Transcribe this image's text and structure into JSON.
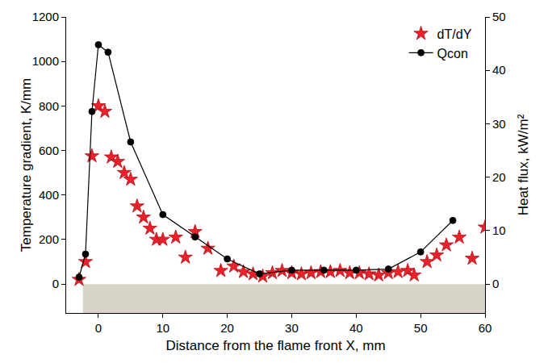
{
  "chart_data": {
    "type": "scatter",
    "x_label": "Distance from the flame front X, mm",
    "y_label": "Temperature gradient, K/mm",
    "y2_label": "Heat flux, kW/m²",
    "xlim": [
      -5,
      60
    ],
    "xticks": [
      0,
      10,
      20,
      30,
      40,
      50,
      60
    ],
    "ylim": [
      -130,
      1200
    ],
    "yticks": [
      0,
      200,
      400,
      600,
      800,
      1000,
      1200
    ],
    "y2lim": [
      -5.42,
      50
    ],
    "y2ticks": [
      0,
      10,
      20,
      30,
      40,
      50
    ],
    "grid": false,
    "legend": "top right",
    "series": [
      {
        "name": "dT/dY",
        "type": "scatter",
        "color": "#e8212a",
        "marker": "star",
        "axis": "y",
        "x": [
          -3,
          -2,
          -1,
          0,
          1,
          2,
          3,
          4,
          5,
          6,
          7,
          8,
          9,
          10,
          12,
          13.5,
          15,
          17,
          19,
          21,
          22.5,
          24,
          25.5,
          27,
          28.5,
          30,
          31.5,
          33,
          34.5,
          36,
          37.5,
          39,
          40.5,
          42,
          43.5,
          45,
          46.5,
          48,
          49,
          51,
          52.5,
          54,
          56,
          58,
          60
        ],
        "values": [
          20,
          100,
          575,
          800,
          775,
          570,
          550,
          500,
          470,
          350,
          300,
          250,
          200,
          200,
          210,
          120,
          235,
          160,
          60,
          80,
          55,
          45,
          35,
          50,
          60,
          50,
          45,
          50,
          55,
          55,
          60,
          50,
          50,
          45,
          40,
          50,
          55,
          60,
          40,
          100,
          130,
          175,
          210,
          115,
          255
        ]
      },
      {
        "name": "Qcon",
        "type": "line",
        "color": "#000000",
        "marker": "circle",
        "line_style": "solid",
        "axis": "y2",
        "x": [
          -3,
          -2,
          -1,
          0,
          1.5,
          5,
          10,
          15,
          20,
          25,
          30,
          35,
          40,
          45,
          50,
          55
        ],
        "values": [
          1.3,
          5.6,
          32.3,
          44.8,
          43.4,
          26.6,
          13,
          8.8,
          4.7,
          1.9,
          2.6,
          2.6,
          2.6,
          2.8,
          6,
          11.9
        ]
      }
    ]
  }
}
